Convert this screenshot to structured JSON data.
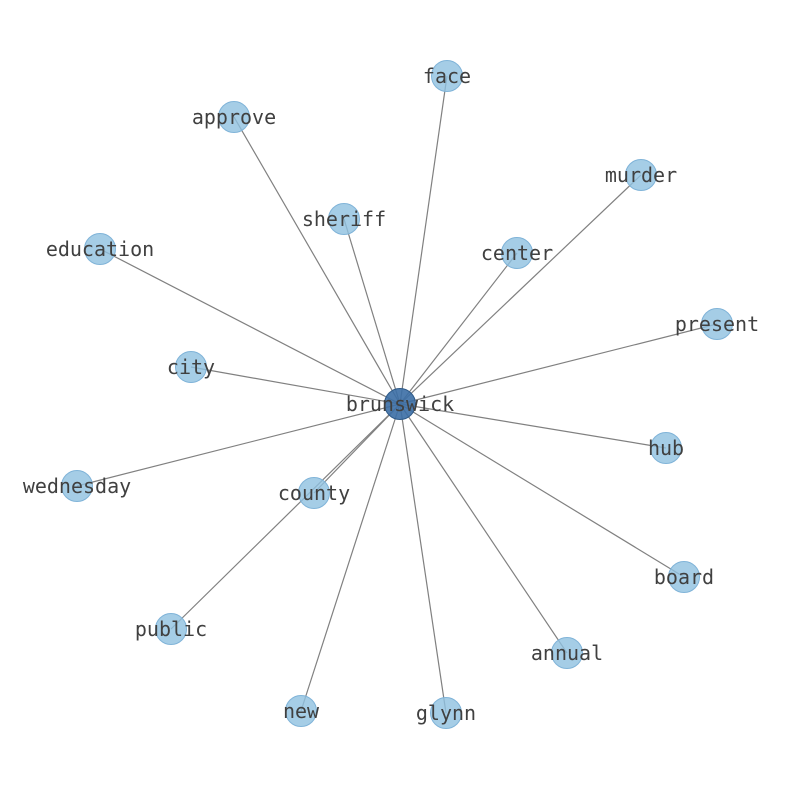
{
  "graph": {
    "center": "brunswick",
    "nodes": [
      "brunswick",
      "face",
      "approve",
      "murder",
      "sheriff",
      "education",
      "center",
      "present",
      "city",
      "hub",
      "wednesday",
      "county",
      "board",
      "public",
      "annual",
      "new",
      "glynn"
    ],
    "edges": [
      [
        "brunswick",
        "face"
      ],
      [
        "brunswick",
        "approve"
      ],
      [
        "brunswick",
        "murder"
      ],
      [
        "brunswick",
        "sheriff"
      ],
      [
        "brunswick",
        "education"
      ],
      [
        "brunswick",
        "center"
      ],
      [
        "brunswick",
        "present"
      ],
      [
        "brunswick",
        "city"
      ],
      [
        "brunswick",
        "hub"
      ],
      [
        "brunswick",
        "wednesday"
      ],
      [
        "brunswick",
        "county"
      ],
      [
        "brunswick",
        "board"
      ],
      [
        "brunswick",
        "public"
      ],
      [
        "brunswick",
        "annual"
      ],
      [
        "brunswick",
        "new"
      ],
      [
        "brunswick",
        "glynn"
      ]
    ],
    "colors": {
      "node": "#8fc0e0",
      "center_node": "#3b6ea5",
      "edge": "#808080",
      "label": "#404040"
    }
  }
}
